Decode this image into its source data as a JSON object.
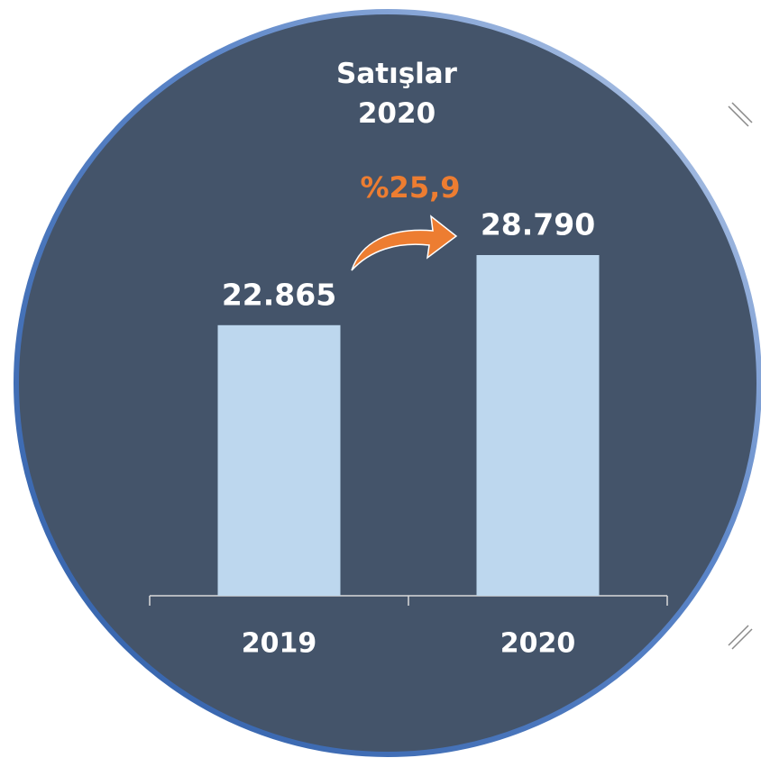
{
  "chart_data": {
    "type": "bar",
    "title": "Satışlar 2020",
    "categories": [
      "2019",
      "2020"
    ],
    "values": [
      22865,
      28790
    ],
    "value_labels": [
      "22.865",
      "28.790"
    ],
    "color": "#bdd7ee",
    "annotation": "%25,9",
    "annotation_color": "#ed7d31"
  }
}
